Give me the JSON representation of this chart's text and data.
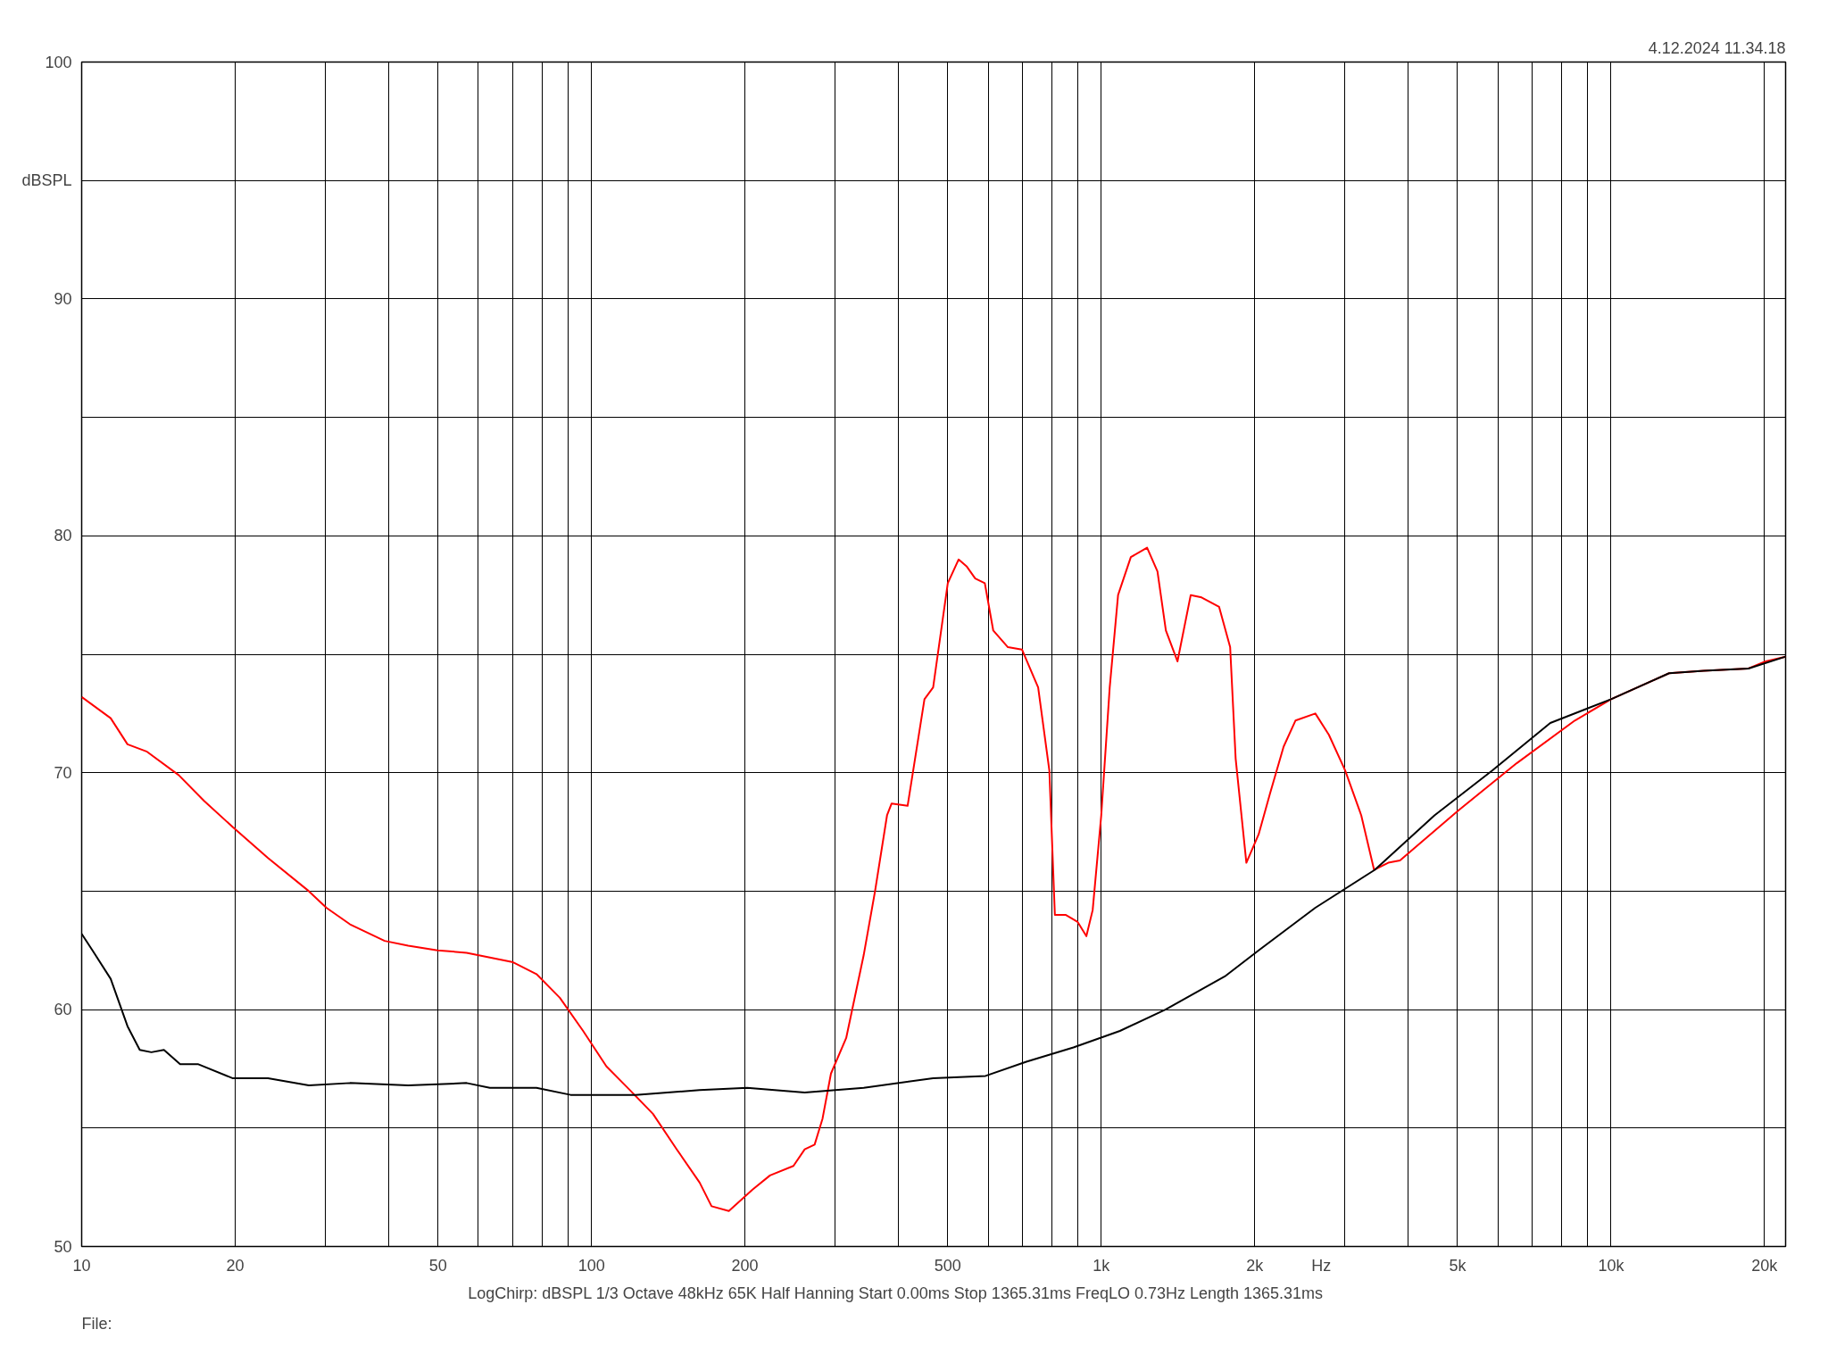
{
  "chart_data": {
    "type": "line",
    "xlabel": "Hz",
    "log": "x",
    "grid": true,
    "marker": "none",
    "line_style": "solid",
    "xlim": [
      10,
      22000
    ],
    "ylim": [
      50,
      100
    ],
    "xticks": [
      10,
      20,
      {
        "value": 30,
        "label": null
      },
      {
        "value": 40,
        "label": null
      },
      50,
      {
        "value": 60,
        "label": null
      },
      {
        "value": 70,
        "label": null
      },
      {
        "value": 80,
        "label": null
      },
      {
        "value": 90,
        "label": null
      },
      100,
      200,
      {
        "value": 300,
        "label": null
      },
      {
        "value": 400,
        "label": null
      },
      500,
      {
        "value": 600,
        "label": null
      },
      {
        "value": 700,
        "label": null
      },
      {
        "value": 800,
        "label": null
      },
      {
        "value": 900,
        "label": null
      },
      {
        "value": 1000,
        "label": "1k"
      },
      {
        "value": 2000,
        "label": "2k"
      },
      {
        "value": 3000,
        "label": null
      },
      {
        "value": 4000,
        "label": null
      },
      {
        "value": 5000,
        "label": "5k"
      },
      {
        "value": 6000,
        "label": null
      },
      {
        "value": 7000,
        "label": null
      },
      {
        "value": 8000,
        "label": null
      },
      {
        "value": 9000,
        "label": null
      },
      {
        "value": 10000,
        "label": "10k"
      },
      {
        "value": 20000,
        "label": "20k"
      }
    ],
    "yticks": [
      50,
      {
        "value": 55,
        "label": null
      },
      60,
      {
        "value": 65,
        "label": null
      },
      70,
      {
        "value": 75,
        "label": null
      },
      80,
      {
        "value": 85,
        "label": null
      },
      90,
      {
        "value": 95,
        "label": "dBSPL"
      },
      100
    ],
    "annotations": [
      "4.12.2024 11.34.18",
      "LogChirp:  dBSPL   1/3 Octave   48kHz   65K   Half Hanning   Start 0.00ms   Stop 1365.31ms   FreqLO 0.73Hz   Length 1365.31ms",
      "File:"
    ],
    "series": [
      {
        "color": "#ff0000",
        "x": [
          10,
          11.4,
          12.3,
          13.4,
          15.5,
          17.4,
          19.8,
          23.2,
          27.9,
          30.2,
          33.6,
          39.3,
          43.7,
          49.9,
          56.9,
          63.2,
          70.2,
          78,
          86.7,
          96.3,
          107,
          119,
          132,
          147,
          163,
          172,
          186,
          207,
          224,
          249,
          262,
          274,
          284,
          295,
          316,
          342,
          360,
          380,
          388,
          417,
          450,
          468,
          500,
          525,
          545,
          566,
          591,
          614,
          656,
          699,
          752,
          791,
          811,
          851,
          899,
          935,
          962,
          1000,
          1039,
          1079,
          1143,
          1230,
          1289,
          1339,
          1411,
          1498,
          1573,
          1703,
          1790,
          1835,
          1926,
          2036,
          2142,
          2279,
          2404,
          2630,
          2796,
          3009,
          3236,
          3429,
          3656,
          3855,
          5012,
          6530,
          8490,
          10000,
          13000,
          15200,
          18600,
          20100,
          22000
        ],
        "values": [
          73.2,
          72.3,
          71.2,
          70.9,
          69.9,
          68.8,
          67.7,
          66.4,
          65.0,
          64.3,
          63.6,
          62.9,
          62.7,
          62.5,
          62.4,
          62.2,
          62.0,
          61.5,
          60.5,
          59.1,
          57.6,
          56.6,
          55.6,
          54.1,
          52.7,
          51.7,
          51.5,
          52.4,
          53.0,
          53.4,
          54.1,
          54.3,
          55.4,
          57.3,
          58.8,
          62.3,
          65.0,
          68.2,
          68.7,
          68.6,
          73.1,
          73.6,
          78.0,
          79.0,
          78.7,
          78.2,
          78.0,
          76.0,
          75.3,
          75.2,
          73.6,
          70.1,
          64.0,
          64.0,
          63.7,
          63.1,
          64.2,
          68.2,
          73.6,
          77.5,
          79.1,
          79.5,
          78.5,
          76.0,
          74.7,
          77.5,
          77.4,
          77.0,
          75.3,
          70.6,
          66.2,
          67.4,
          69.1,
          71.1,
          72.2,
          72.5,
          71.6,
          70.1,
          68.2,
          65.9,
          66.2,
          66.3,
          68.4,
          70.4,
          72.2,
          73.1,
          74.2,
          74.3,
          74.4,
          74.7,
          74.9
        ]
      },
      {
        "color": "#000000",
        "x": [
          10,
          10.5,
          11.4,
          12.3,
          13.0,
          13.7,
          14.5,
          15.6,
          16.9,
          19.8,
          23.2,
          27.9,
          33.6,
          43.7,
          56.9,
          63.2,
          78,
          91,
          122,
          163,
          202,
          262,
          342,
          468,
          593,
          713,
          882,
          1088,
          1336,
          1747,
          2036,
          2630,
          3441,
          4505,
          5855,
          7600,
          10000,
          13000,
          15200,
          18600,
          22000
        ],
        "values": [
          63.2,
          62.5,
          61.3,
          59.3,
          58.3,
          58.2,
          58.3,
          57.7,
          57.7,
          57.1,
          57.1,
          56.8,
          56.9,
          56.8,
          56.9,
          56.7,
          56.7,
          56.4,
          56.4,
          56.6,
          56.7,
          56.5,
          56.7,
          57.1,
          57.2,
          57.8,
          58.4,
          59.1,
          60.0,
          61.4,
          62.5,
          64.3,
          65.9,
          68.2,
          70.1,
          72.1,
          73.1,
          74.2,
          74.3,
          74.4,
          74.9
        ]
      }
    ]
  }
}
